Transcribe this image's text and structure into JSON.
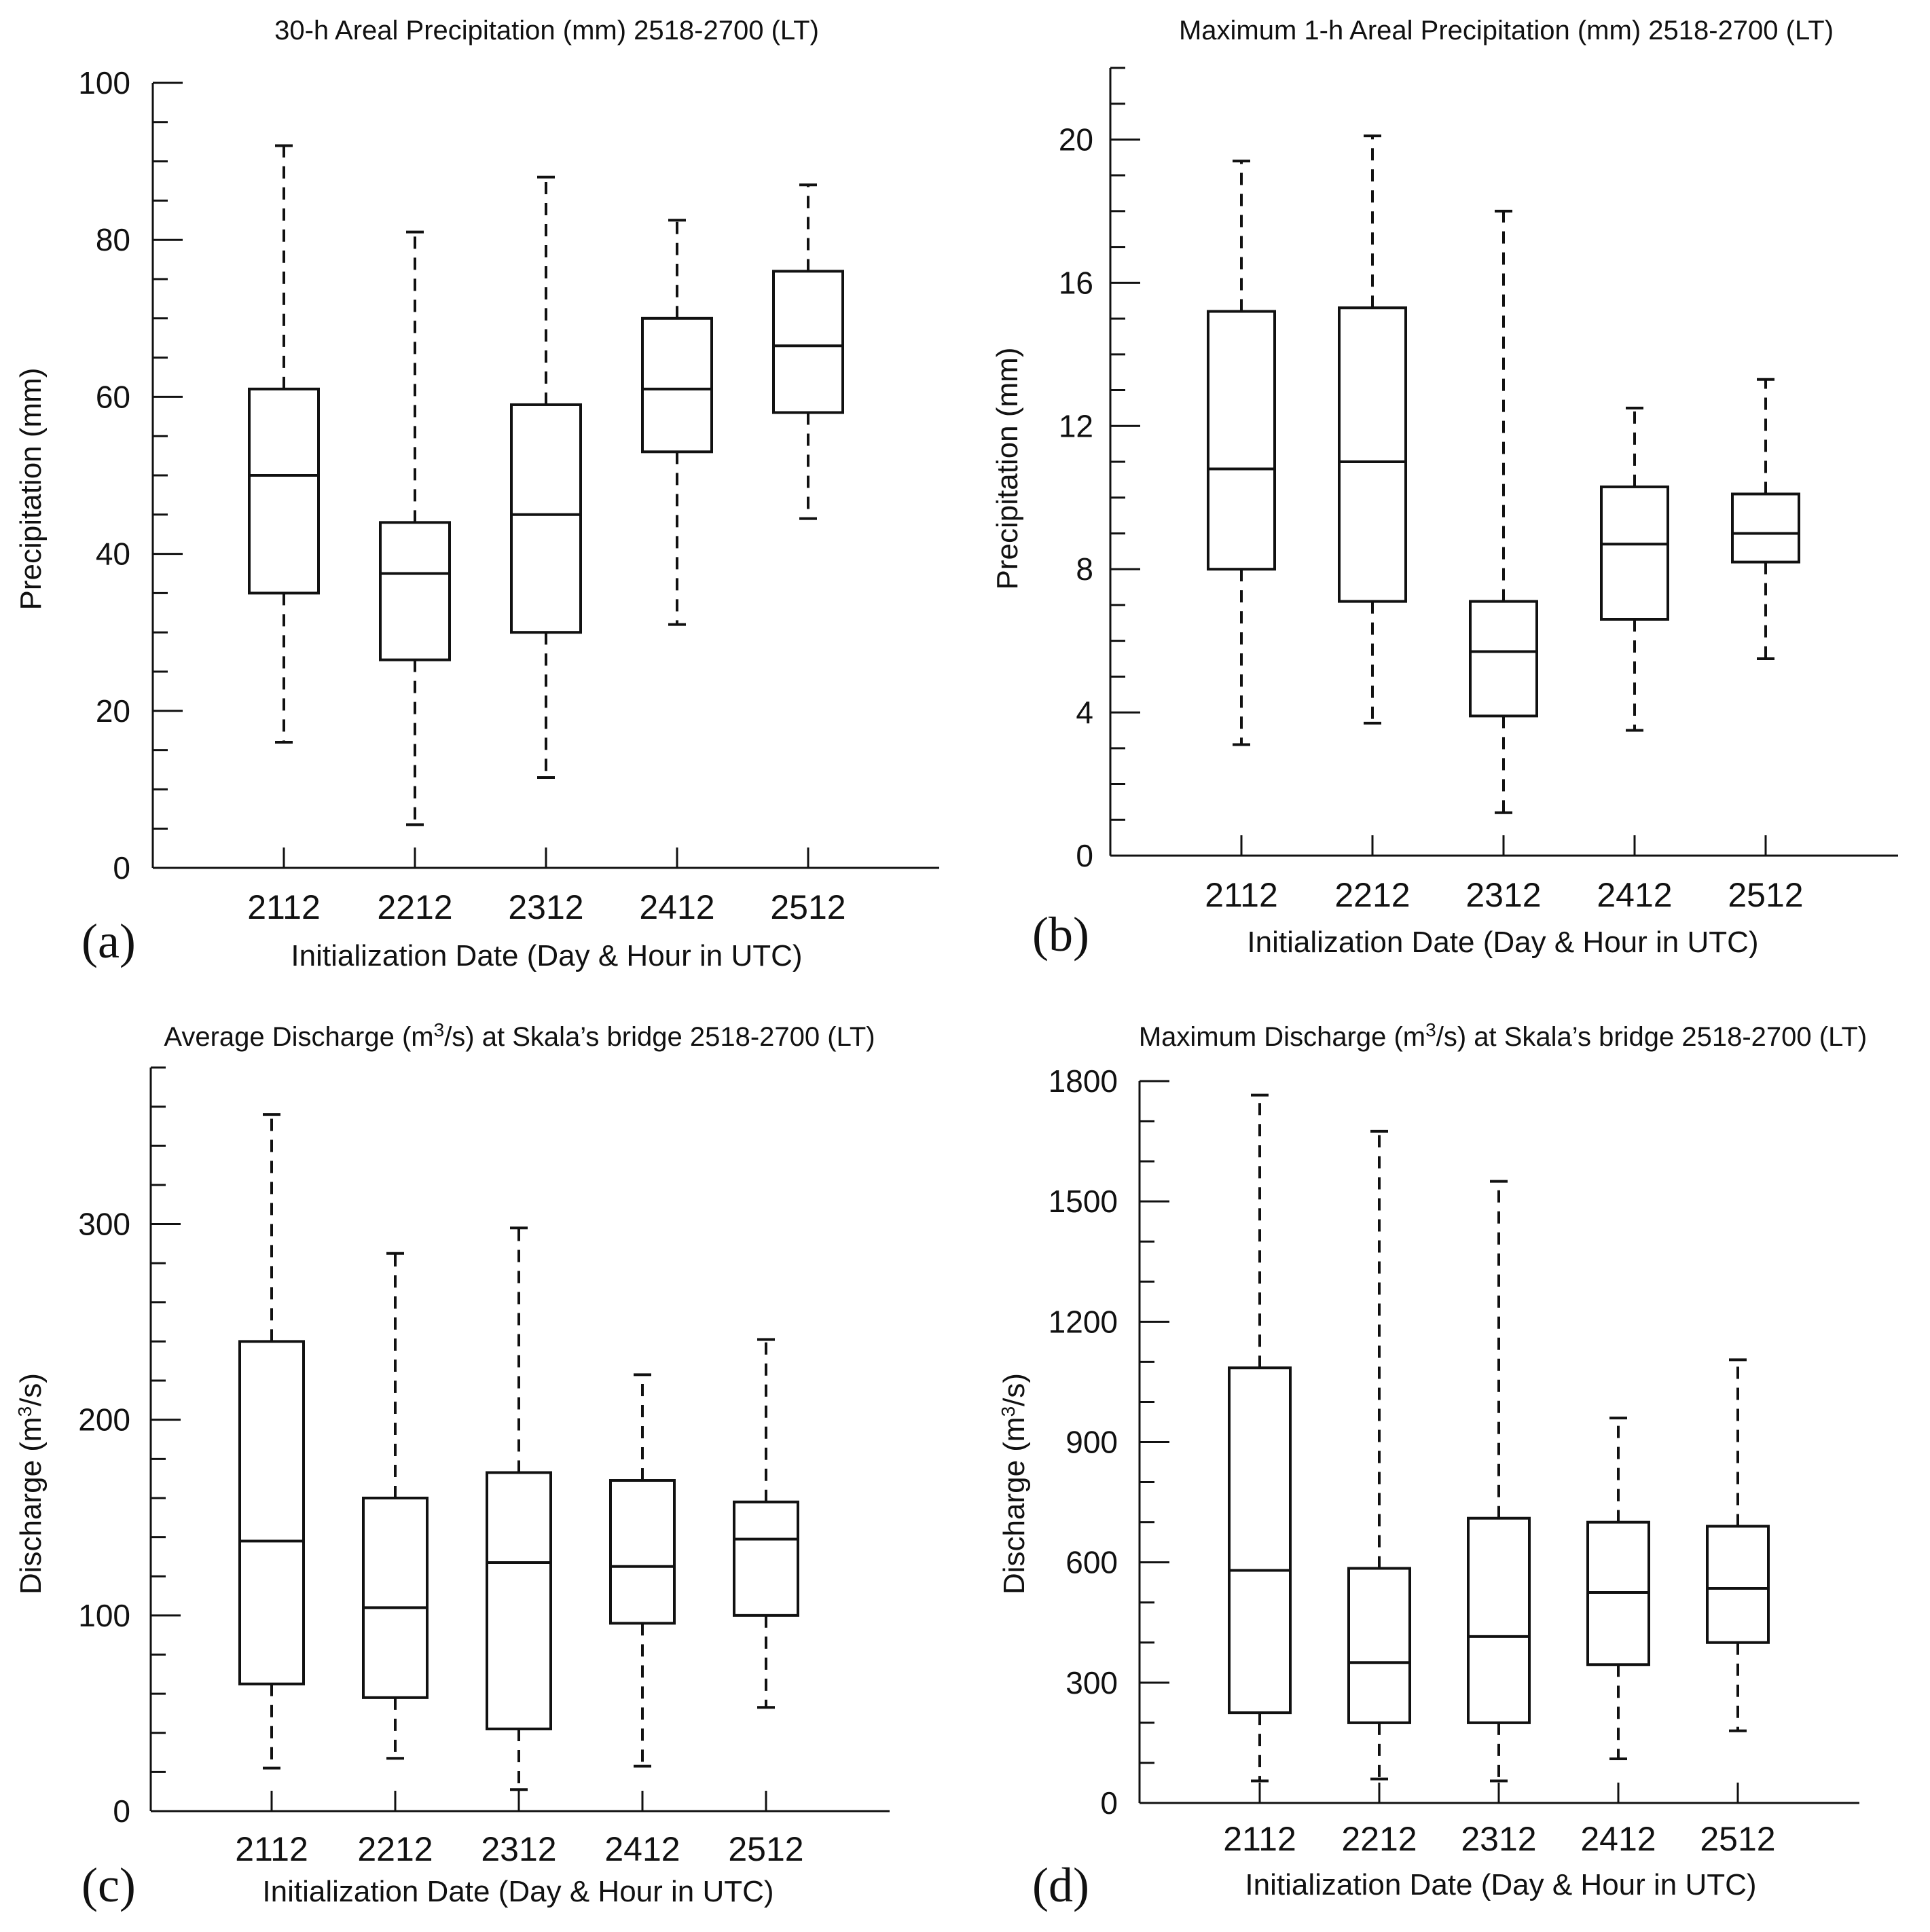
{
  "chart_data": [
    {
      "type": "boxplot",
      "panel_label": "(a)",
      "title": "30-h Areal Precipitation (mm) 2518-2700 (LT)",
      "title_sup": "",
      "title_after": "",
      "ylabel": "Precipitation (mm)",
      "ylabel_sup": "",
      "ylabel_after": "",
      "xlabel": "Initialization Date (Day & Hour in UTC)",
      "categories": [
        "2112",
        "2212",
        "2312",
        "2412",
        "2512"
      ],
      "ylim": [
        0,
        100
      ],
      "yticks": [
        0,
        20,
        40,
        60,
        80,
        100
      ],
      "yticklabels": [
        "0",
        "20",
        "40",
        "60",
        "80",
        "100"
      ],
      "minor_step": 5,
      "boxes": [
        {
          "min": 16,
          "q1": 35,
          "median": 50,
          "q3": 61,
          "max": 92
        },
        {
          "min": 5.5,
          "q1": 26.5,
          "median": 37.5,
          "q3": 44,
          "max": 81
        },
        {
          "min": 11.5,
          "q1": 30,
          "median": 45,
          "q3": 59,
          "max": 88
        },
        {
          "min": 31,
          "q1": 53,
          "median": 61,
          "q3": 70,
          "max": 82.5
        },
        {
          "min": 44.5,
          "q1": 58,
          "median": 66.5,
          "q3": 76,
          "max": 87
        }
      ]
    },
    {
      "type": "boxplot",
      "panel_label": "(b)",
      "title": "Maximum 1-h Areal Precipitation (mm) 2518-2700 (LT)",
      "title_sup": "",
      "title_after": "",
      "ylabel": "Precipitation (mm)",
      "ylabel_sup": "",
      "ylabel_after": "",
      "xlabel": "Initialization Date (Day & Hour in UTC)",
      "categories": [
        "2112",
        "2212",
        "2312",
        "2412",
        "2512"
      ],
      "ylim": [
        0,
        22
      ],
      "yticks": [
        0,
        4,
        8,
        12,
        16,
        20
      ],
      "yticklabels": [
        "0",
        "4",
        "8",
        "12",
        "16",
        "20"
      ],
      "minor_step": 1,
      "boxes": [
        {
          "min": 3.1,
          "q1": 8,
          "median": 10.8,
          "q3": 15.2,
          "max": 19.4
        },
        {
          "min": 3.7,
          "q1": 7.1,
          "median": 11,
          "q3": 15.3,
          "max": 20.1
        },
        {
          "min": 1.2,
          "q1": 3.9,
          "median": 5.7,
          "q3": 7.1,
          "max": 18
        },
        {
          "min": 3.5,
          "q1": 6.6,
          "median": 8.7,
          "q3": 10.3,
          "max": 12.5
        },
        {
          "min": 5.5,
          "q1": 8.2,
          "median": 9,
          "q3": 10.1,
          "max": 13.3
        }
      ]
    },
    {
      "type": "boxplot",
      "panel_label": "(c)",
      "title": "Average Discharge (m",
      "title_sup": "3",
      "title_after": "/s) at Skala’s bridge 2518-2700 (LT)",
      "ylabel": "Discharge (m",
      "ylabel_sup": "3",
      "ylabel_after": "/s)",
      "xlabel": "Initialization Date (Day & Hour in UTC)",
      "categories": [
        "2112",
        "2212",
        "2312",
        "2412",
        "2512"
      ],
      "ylim": [
        0,
        380
      ],
      "yticks": [
        0,
        100,
        200,
        300
      ],
      "yticklabels": [
        "0",
        "100",
        "200",
        "300"
      ],
      "minor_step": 20,
      "boxes": [
        {
          "min": 22,
          "q1": 65,
          "median": 138,
          "q3": 240,
          "max": 356
        },
        {
          "min": 27,
          "q1": 58,
          "median": 104,
          "q3": 160,
          "max": 285
        },
        {
          "min": 11,
          "q1": 42,
          "median": 127,
          "q3": 173,
          "max": 298
        },
        {
          "min": 23,
          "q1": 96,
          "median": 125,
          "q3": 169,
          "max": 223
        },
        {
          "min": 53,
          "q1": 100,
          "median": 139,
          "q3": 158,
          "max": 241
        }
      ]
    },
    {
      "type": "boxplot",
      "panel_label": "(d)",
      "title": "Maximum Discharge (m",
      "title_sup": "3",
      "title_after": "/s) at Skala’s bridge 2518-2700 (LT)",
      "ylabel": "Discharge (m",
      "ylabel_sup": "3",
      "ylabel_after": "/s)",
      "xlabel": "Initialization Date (Day & Hour in UTC)",
      "categories": [
        "2112",
        "2212",
        "2312",
        "2412",
        "2512"
      ],
      "ylim": [
        0,
        1800
      ],
      "yticks": [
        0,
        300,
        600,
        900,
        1200,
        1500,
        1800
      ],
      "yticklabels": [
        "0",
        "300",
        "600",
        "900",
        "1200",
        "1500",
        "1800"
      ],
      "minor_step": 100,
      "boxes": [
        {
          "min": 55,
          "q1": 225,
          "median": 580,
          "q3": 1085,
          "max": 1765
        },
        {
          "min": 60,
          "q1": 200,
          "median": 350,
          "q3": 585,
          "max": 1675
        },
        {
          "min": 55,
          "q1": 200,
          "median": 415,
          "q3": 710,
          "max": 1550
        },
        {
          "min": 110,
          "q1": 345,
          "median": 525,
          "q3": 700,
          "max": 960
        },
        {
          "min": 180,
          "q1": 400,
          "median": 535,
          "q3": 690,
          "max": 1105
        }
      ]
    }
  ]
}
